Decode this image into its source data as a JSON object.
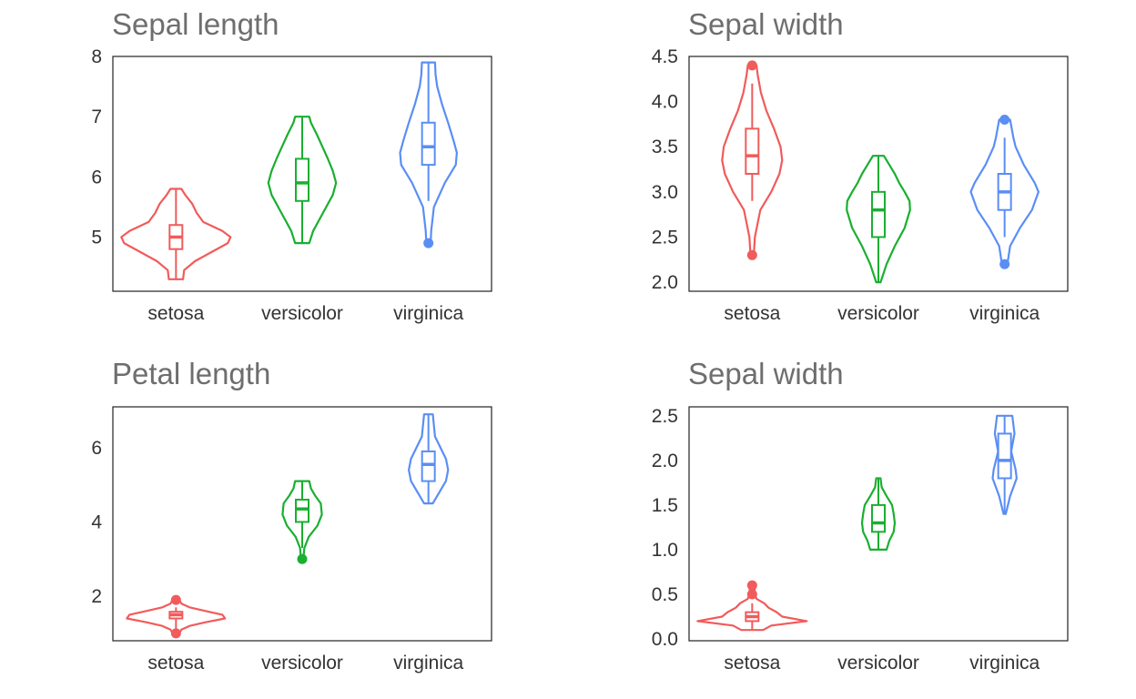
{
  "chart_data": [
    {
      "type": "violin",
      "title": "Sepal length",
      "categories": [
        "setosa",
        "versicolor",
        "virginica"
      ],
      "ylim": [
        4.1,
        8.0
      ],
      "yticks": [
        5,
        6,
        7,
        8
      ],
      "ytick_labels": [
        "5",
        "6",
        "7",
        "8"
      ],
      "series": [
        {
          "color": "#f15b5b",
          "min": 4.3,
          "q1": 4.8,
          "median": 5.0,
          "q3": 5.2,
          "max": 5.8,
          "whisker_low": 4.3,
          "whisker_high": 5.8,
          "outliers": [],
          "profile": [
            [
              4.3,
              0.13
            ],
            [
              4.45,
              0.15
            ],
            [
              4.6,
              0.35
            ],
            [
              4.75,
              0.65
            ],
            [
              4.9,
              0.95
            ],
            [
              5.0,
              1.0
            ],
            [
              5.1,
              0.85
            ],
            [
              5.25,
              0.5
            ],
            [
              5.4,
              0.38
            ],
            [
              5.55,
              0.3
            ],
            [
              5.7,
              0.17
            ],
            [
              5.8,
              0.1
            ]
          ]
        },
        {
          "color": "#1aaf30",
          "min": 4.9,
          "q1": 5.6,
          "median": 5.9,
          "q3": 6.3,
          "max": 7.0,
          "whisker_low": 4.9,
          "whisker_high": 7.0,
          "outliers": [],
          "profile": [
            [
              4.9,
              0.13
            ],
            [
              5.1,
              0.2
            ],
            [
              5.4,
              0.38
            ],
            [
              5.7,
              0.56
            ],
            [
              5.9,
              0.62
            ],
            [
              6.1,
              0.56
            ],
            [
              6.3,
              0.47
            ],
            [
              6.5,
              0.37
            ],
            [
              6.7,
              0.27
            ],
            [
              6.9,
              0.16
            ],
            [
              7.0,
              0.13
            ]
          ]
        },
        {
          "color": "#5a8ef5",
          "min": 4.9,
          "q1": 6.2,
          "median": 6.5,
          "q3": 6.9,
          "max": 7.9,
          "whisker_low": 5.6,
          "whisker_high": 7.9,
          "outliers": [
            4.9
          ],
          "profile": [
            [
              4.9,
              0.04
            ],
            [
              5.1,
              0.05
            ],
            [
              5.5,
              0.1
            ],
            [
              5.9,
              0.3
            ],
            [
              6.2,
              0.5
            ],
            [
              6.4,
              0.52
            ],
            [
              6.6,
              0.46
            ],
            [
              6.9,
              0.36
            ],
            [
              7.2,
              0.25
            ],
            [
              7.5,
              0.16
            ],
            [
              7.7,
              0.13
            ],
            [
              7.9,
              0.12
            ]
          ]
        }
      ]
    },
    {
      "type": "violin",
      "title": "Sepal width",
      "categories": [
        "setosa",
        "versicolor",
        "virginica"
      ],
      "ylim": [
        1.9,
        4.5
      ],
      "yticks": [
        2.0,
        2.5,
        3.0,
        3.5,
        4.0,
        4.5
      ],
      "ytick_labels": [
        "2.0",
        "2.5",
        "3.0",
        "3.5",
        "4.0",
        "4.5"
      ],
      "series": [
        {
          "color": "#f15b5b",
          "min": 2.3,
          "q1": 3.2,
          "median": 3.4,
          "q3": 3.7,
          "max": 4.4,
          "whisker_low": 2.9,
          "whisker_high": 4.2,
          "outliers": [
            2.3,
            4.4
          ],
          "profile": [
            [
              2.3,
              0.03
            ],
            [
              2.5,
              0.05
            ],
            [
              2.8,
              0.15
            ],
            [
              3.0,
              0.35
            ],
            [
              3.2,
              0.5
            ],
            [
              3.35,
              0.55
            ],
            [
              3.5,
              0.52
            ],
            [
              3.7,
              0.4
            ],
            [
              3.9,
              0.26
            ],
            [
              4.1,
              0.16
            ],
            [
              4.3,
              0.1
            ],
            [
              4.4,
              0.08
            ]
          ]
        },
        {
          "color": "#1aaf30",
          "min": 2.0,
          "q1": 2.5,
          "median": 2.8,
          "q3": 3.0,
          "max": 3.4,
          "whisker_low": 2.0,
          "whisker_high": 3.4,
          "outliers": [],
          "profile": [
            [
              2.0,
              0.04
            ],
            [
              2.2,
              0.15
            ],
            [
              2.4,
              0.3
            ],
            [
              2.6,
              0.48
            ],
            [
              2.8,
              0.58
            ],
            [
              2.9,
              0.57
            ],
            [
              3.0,
              0.48
            ],
            [
              3.1,
              0.38
            ],
            [
              3.2,
              0.3
            ],
            [
              3.3,
              0.2
            ],
            [
              3.4,
              0.1
            ]
          ]
        },
        {
          "color": "#5a8ef5",
          "min": 2.2,
          "q1": 2.8,
          "median": 3.0,
          "q3": 3.2,
          "max": 3.8,
          "whisker_low": 2.5,
          "whisker_high": 3.6,
          "outliers": [
            2.2,
            3.8
          ],
          "profile": [
            [
              2.2,
              0.05
            ],
            [
              2.4,
              0.1
            ],
            [
              2.6,
              0.28
            ],
            [
              2.8,
              0.5
            ],
            [
              3.0,
              0.62
            ],
            [
              3.1,
              0.55
            ],
            [
              3.3,
              0.35
            ],
            [
              3.5,
              0.2
            ],
            [
              3.6,
              0.16
            ],
            [
              3.7,
              0.13
            ],
            [
              3.8,
              0.1
            ]
          ]
        }
      ]
    },
    {
      "type": "violin",
      "title": "Petal length",
      "categories": [
        "setosa",
        "versicolor",
        "virginica"
      ],
      "ylim": [
        0.8,
        7.1
      ],
      "yticks": [
        2,
        4,
        6
      ],
      "ytick_labels": [
        "2",
        "4",
        "6"
      ],
      "series": [
        {
          "color": "#f15b5b",
          "min": 1.0,
          "q1": 1.4,
          "median": 1.5,
          "q3": 1.58,
          "max": 1.9,
          "whisker_low": 1.1,
          "whisker_high": 1.7,
          "outliers": [
            1.0,
            1.9
          ],
          "profile": [
            [
              1.0,
              0.06
            ],
            [
              1.1,
              0.1
            ],
            [
              1.2,
              0.25
            ],
            [
              1.3,
              0.55
            ],
            [
              1.4,
              0.9
            ],
            [
              1.5,
              0.85
            ],
            [
              1.6,
              0.55
            ],
            [
              1.7,
              0.25
            ],
            [
              1.8,
              0.1
            ],
            [
              1.9,
              0.06
            ]
          ]
        },
        {
          "color": "#1aaf30",
          "min": 3.0,
          "q1": 4.0,
          "median": 4.35,
          "q3": 4.6,
          "max": 5.1,
          "whisker_low": 3.3,
          "whisker_high": 5.1,
          "outliers": [
            3.0
          ],
          "profile": [
            [
              3.0,
              0.02
            ],
            [
              3.3,
              0.04
            ],
            [
              3.6,
              0.12
            ],
            [
              3.9,
              0.28
            ],
            [
              4.2,
              0.36
            ],
            [
              4.5,
              0.34
            ],
            [
              4.7,
              0.24
            ],
            [
              4.9,
              0.16
            ],
            [
              5.1,
              0.13
            ]
          ]
        },
        {
          "color": "#5a8ef5",
          "min": 4.5,
          "q1": 5.1,
          "median": 5.55,
          "q3": 5.9,
          "max": 6.9,
          "whisker_low": 4.5,
          "whisker_high": 6.9,
          "outliers": [],
          "profile": [
            [
              4.5,
              0.08
            ],
            [
              4.8,
              0.2
            ],
            [
              5.1,
              0.32
            ],
            [
              5.4,
              0.36
            ],
            [
              5.7,
              0.32
            ],
            [
              6.0,
              0.22
            ],
            [
              6.3,
              0.12
            ],
            [
              6.6,
              0.1
            ],
            [
              6.9,
              0.08
            ]
          ]
        }
      ]
    },
    {
      "type": "violin",
      "title": "Sepal width",
      "categories": [
        "setosa",
        "versicolor",
        "virginica"
      ],
      "ylim": [
        -0.02,
        2.6
      ],
      "yticks": [
        0.0,
        0.5,
        1.0,
        1.5,
        2.0,
        2.5
      ],
      "ytick_labels": [
        "0.0",
        "0.5",
        "1.0",
        "1.5",
        "2.0",
        "2.5"
      ],
      "series": [
        {
          "color": "#f15b5b",
          "min": 0.1,
          "q1": 0.2,
          "median": 0.25,
          "q3": 0.3,
          "max": 0.6,
          "whisker_low": 0.1,
          "whisker_high": 0.4,
          "outliers": [
            0.5,
            0.6
          ],
          "profile": [
            [
              0.1,
              0.2
            ],
            [
              0.15,
              0.35
            ],
            [
              0.2,
              1.0
            ],
            [
              0.25,
              0.55
            ],
            [
              0.3,
              0.45
            ],
            [
              0.35,
              0.3
            ],
            [
              0.4,
              0.22
            ],
            [
              0.45,
              0.08
            ],
            [
              0.5,
              0.05
            ],
            [
              0.6,
              0.04
            ]
          ]
        },
        {
          "color": "#1aaf30",
          "min": 1.0,
          "q1": 1.2,
          "median": 1.3,
          "q3": 1.5,
          "max": 1.8,
          "whisker_low": 1.0,
          "whisker_high": 1.8,
          "outliers": [],
          "profile": [
            [
              1.0,
              0.15
            ],
            [
              1.1,
              0.2
            ],
            [
              1.2,
              0.28
            ],
            [
              1.3,
              0.3
            ],
            [
              1.4,
              0.28
            ],
            [
              1.5,
              0.25
            ],
            [
              1.6,
              0.15
            ],
            [
              1.7,
              0.06
            ],
            [
              1.8,
              0.04
            ]
          ]
        },
        {
          "color": "#5a8ef5",
          "min": 1.4,
          "q1": 1.8,
          "median": 2.0,
          "q3": 2.3,
          "max": 2.5,
          "whisker_low": 1.4,
          "whisker_high": 2.5,
          "outliers": [],
          "profile": [
            [
              1.4,
              0.02
            ],
            [
              1.6,
              0.1
            ],
            [
              1.8,
              0.22
            ],
            [
              1.9,
              0.2
            ],
            [
              2.0,
              0.16
            ],
            [
              2.1,
              0.12
            ],
            [
              2.2,
              0.15
            ],
            [
              2.3,
              0.18
            ],
            [
              2.4,
              0.16
            ],
            [
              2.5,
              0.14
            ]
          ]
        }
      ]
    }
  ]
}
